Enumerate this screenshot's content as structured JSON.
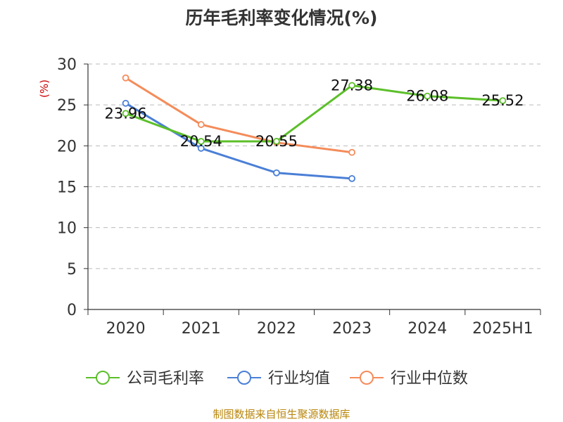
{
  "chart_data": {
    "type": "line",
    "title": "历年毛利率变化情况(%)",
    "ylabel": "(%)",
    "xlabel": "",
    "categories": [
      "2020",
      "2021",
      "2022",
      "2023",
      "2024",
      "2025H1"
    ],
    "ylim": [
      0,
      30
    ],
    "yticks": [
      "0",
      "5",
      "10",
      "15",
      "20",
      "25",
      "30"
    ],
    "grid": true,
    "legend_position": "bottom",
    "series": [
      {
        "name": "公司毛利率",
        "color": "#5cbf2a",
        "values": [
          23.96,
          20.54,
          20.55,
          27.38,
          26.08,
          25.52
        ],
        "labels": [
          "23.96",
          "20.54",
          "20.55",
          "27.38",
          "26.08",
          "25.52"
        ]
      },
      {
        "name": "行业均值",
        "color": "#4a7fd6",
        "values": [
          25.2,
          19.7,
          16.7,
          16.0,
          null,
          null
        ],
        "labels": []
      },
      {
        "name": "行业中位数",
        "color": "#f48c5a",
        "values": [
          28.3,
          22.6,
          20.4,
          19.2,
          null,
          null
        ],
        "labels": []
      }
    ]
  },
  "footer": {
    "source": "制图数据来自恒生聚源数据库"
  }
}
